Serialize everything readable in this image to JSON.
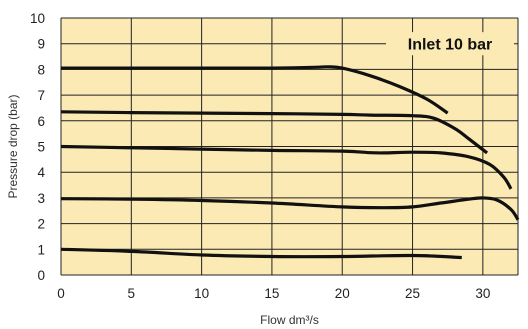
{
  "chart_data": {
    "type": "line",
    "title": "",
    "xlabel": "Flow dm³/s",
    "ylabel": "Pressure drop (bar)",
    "xlim": [
      0,
      32.5
    ],
    "ylim": [
      0,
      10
    ],
    "x_ticks": [
      "0",
      "5",
      "10",
      "15",
      "20",
      "25",
      "30"
    ],
    "y_ticks": [
      "0",
      "1",
      "2",
      "3",
      "4",
      "5",
      "6",
      "7",
      "8",
      "9",
      "10"
    ],
    "grid": true,
    "annotation": "Inlet 10 bar",
    "colors": {
      "background": "#fbeab4",
      "grid": "#222222",
      "line": "#111111"
    },
    "series": [
      {
        "x": [
          0,
          5,
          10,
          15,
          18,
          19,
          20,
          22,
          24,
          26,
          27.5
        ],
        "y": [
          8.05,
          8.05,
          8.05,
          8.05,
          8.08,
          8.1,
          8.05,
          7.75,
          7.35,
          6.85,
          6.3
        ]
      },
      {
        "x": [
          0,
          5,
          10,
          15,
          20,
          22,
          25,
          26.5,
          28,
          29,
          30.3
        ],
        "y": [
          6.35,
          6.32,
          6.3,
          6.28,
          6.25,
          6.22,
          6.2,
          6.1,
          5.7,
          5.3,
          4.75
        ]
      },
      {
        "x": [
          0,
          5,
          10,
          15,
          20,
          22,
          23,
          25,
          27,
          29,
          30.5,
          31.5,
          32
        ],
        "y": [
          5.0,
          4.95,
          4.9,
          4.85,
          4.82,
          4.76,
          4.75,
          4.78,
          4.75,
          4.6,
          4.3,
          3.8,
          3.35
        ]
      },
      {
        "x": [
          0,
          5,
          10,
          15,
          20,
          23,
          25,
          27,
          29,
          30,
          31,
          32,
          32.5
        ],
        "y": [
          2.97,
          2.95,
          2.9,
          2.8,
          2.65,
          2.62,
          2.65,
          2.8,
          2.95,
          3.0,
          2.92,
          2.55,
          2.15
        ]
      },
      {
        "x": [
          0,
          5,
          10,
          15,
          20,
          25,
          28.5
        ],
        "y": [
          1.0,
          0.92,
          0.78,
          0.72,
          0.72,
          0.76,
          0.68
        ]
      }
    ]
  }
}
